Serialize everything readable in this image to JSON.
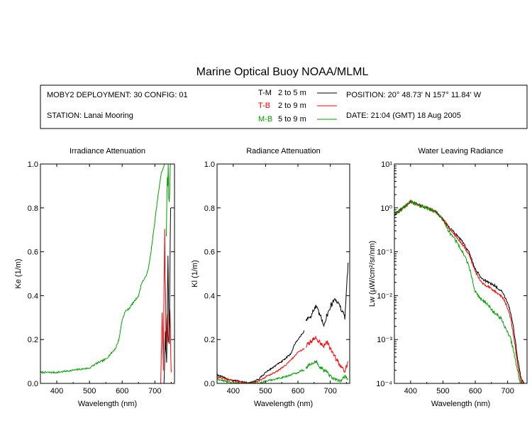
{
  "title": "Marine Optical Buoy NOAA/MLML",
  "info": {
    "deployment": "MOBY2 DEPLOYMENT: 30 CONFIG: 01",
    "station": "STATION: Lanai Mooring",
    "position": "POSITION: 20° 48.73' N   157° 11.84' W",
    "date": "DATE: 21:04 (GMT) 18 Aug 2005"
  },
  "legend": [
    {
      "key": "T-M",
      "range": "2 to 5  m",
      "color": "#000000"
    },
    {
      "key": "T-B",
      "range": "2 to 9  m",
      "color": "#ff0000"
    },
    {
      "key": "M-B",
      "range": "5 to 9  m",
      "color": "#00a000"
    }
  ],
  "chart_data": [
    {
      "type": "line",
      "title": "Irradiance Attenuation",
      "xlabel": "Wavelength (nm)",
      "ylabel": "Ke  (1/m)",
      "xlim": [
        350,
        760
      ],
      "ylim": [
        0,
        1.0
      ],
      "xticks": [
        "400",
        "500",
        "600",
        "700"
      ],
      "yticks": [
        "0.0",
        "0.2",
        "0.4",
        "0.6",
        "0.8",
        "1.0"
      ],
      "series": [
        {
          "color": "#00a000",
          "noise": 0.004,
          "x": [
            350,
            400,
            450,
            500,
            520,
            550,
            580,
            590,
            600,
            610,
            620,
            630,
            650,
            660,
            670,
            680,
            690,
            700,
            710,
            720,
            730
          ],
          "y": [
            0.05,
            0.05,
            0.06,
            0.07,
            0.09,
            0.11,
            0.16,
            0.2,
            0.29,
            0.33,
            0.34,
            0.36,
            0.4,
            0.46,
            0.48,
            0.52,
            0.62,
            0.74,
            0.86,
            0.96,
            1.0
          ]
        },
        {
          "color": "#00a000",
          "noise": 0.06,
          "x": [
            735,
            738,
            741,
            744,
            747,
            750
          ],
          "y": [
            0.7,
            0.9,
            1.0,
            0.8,
            0.95,
            1.0
          ]
        },
        {
          "color": "#ff0000",
          "noise": 0.05,
          "x": [
            718,
            722,
            726,
            730,
            734,
            738,
            742,
            746,
            750
          ],
          "y": [
            0.0,
            0.35,
            0.1,
            0.7,
            0.2,
            0.3,
            0.15,
            0.35,
            0.05
          ]
        },
        {
          "color": "#000000",
          "noise": 0.05,
          "x": [
            728,
            732,
            736,
            740,
            744,
            748
          ],
          "y": [
            0.0,
            0.25,
            0.1,
            0.6,
            0.2,
            0.8
          ]
        }
      ]
    },
    {
      "type": "line",
      "title": "Radiance Attenuation",
      "xlabel": "Wavelength (nm)",
      "ylabel": "Kl  (1/m)",
      "xlim": [
        350,
        760
      ],
      "ylim": [
        0,
        1.0
      ],
      "xticks": [
        "400",
        "500",
        "600",
        "700"
      ],
      "yticks": [
        "0.0",
        "0.2",
        "0.4",
        "0.6",
        "0.8",
        "1.0"
      ],
      "series": [
        {
          "color": "#000000",
          "noise": 0.004,
          "x": [
            350,
            380,
            420,
            450,
            480,
            500,
            530,
            560,
            580,
            590,
            600,
            610,
            620
          ],
          "y": [
            0.04,
            0.02,
            0.01,
            0.0,
            0.02,
            0.05,
            0.08,
            0.11,
            0.14,
            0.18,
            0.2,
            0.22,
            0.24
          ]
        },
        {
          "color": "#000000",
          "noise": 0.012,
          "x": [
            625,
            640,
            655,
            665,
            680,
            690,
            700,
            715,
            730,
            745,
            755
          ],
          "y": [
            0.29,
            0.31,
            0.35,
            0.32,
            0.27,
            0.31,
            0.35,
            0.39,
            0.35,
            0.3,
            0.55
          ]
        },
        {
          "color": "#ff0000",
          "noise": 0.004,
          "x": [
            350,
            400,
            450,
            480,
            500,
            530,
            560,
            580,
            600,
            610,
            620
          ],
          "y": [
            0.03,
            0.01,
            0.0,
            0.01,
            0.03,
            0.05,
            0.08,
            0.11,
            0.14,
            0.15,
            0.16
          ]
        },
        {
          "color": "#ff0000",
          "noise": 0.01,
          "x": [
            625,
            640,
            655,
            665,
            680,
            690,
            700,
            715,
            730,
            745,
            755
          ],
          "y": [
            0.17,
            0.19,
            0.21,
            0.19,
            0.17,
            0.19,
            0.16,
            0.12,
            0.08,
            0.06,
            0.1
          ]
        },
        {
          "color": "#00a000",
          "noise": 0.004,
          "x": [
            350,
            400,
            450,
            480,
            500,
            530,
            560,
            580,
            600,
            610,
            620
          ],
          "y": [
            0.02,
            0.0,
            0.0,
            0.0,
            0.01,
            0.02,
            0.03,
            0.04,
            0.05,
            0.06,
            0.06
          ]
        },
        {
          "color": "#00a000",
          "noise": 0.008,
          "x": [
            625,
            640,
            655,
            665,
            680,
            690,
            700,
            715,
            730,
            745,
            755
          ],
          "y": [
            0.07,
            0.09,
            0.1,
            0.08,
            0.06,
            0.05,
            0.03,
            0.02,
            0.01,
            0.03,
            0.02
          ]
        }
      ]
    },
    {
      "type": "line",
      "title": "Water Leaving Radiance",
      "xlabel": "Wavelength (nm)",
      "ylabel": "Lw (µW/cm²/sr/nm)",
      "xlim": [
        350,
        760
      ],
      "ylim": [
        0.0001,
        10
      ],
      "yscale": "log",
      "xticks": [
        "400",
        "500",
        "600",
        "700"
      ],
      "yticks": [
        "10⁻⁴",
        "10⁻³",
        "10⁻²",
        "10⁻¹",
        "10⁰",
        "10¹"
      ],
      "series": [
        {
          "color": "#000000",
          "noise": 0.03,
          "x": [
            350,
            370,
            390,
            400,
            420,
            450,
            480,
            500,
            520,
            540,
            560,
            580,
            600,
            620,
            640,
            660,
            680,
            690,
            700,
            710,
            720,
            730,
            740,
            750
          ],
          "y": [
            0.7,
            0.9,
            1.2,
            1.4,
            1.2,
            1.0,
            0.8,
            0.55,
            0.35,
            0.25,
            0.17,
            0.1,
            0.04,
            0.025,
            0.02,
            0.017,
            0.013,
            0.01,
            0.007,
            0.004,
            0.0015,
            0.0004,
            0.00015,
            0.0001
          ]
        },
        {
          "color": "#ff0000",
          "noise": 0.03,
          "x": [
            350,
            370,
            390,
            400,
            420,
            450,
            480,
            500,
            520,
            540,
            560,
            580,
            600,
            620,
            640,
            660,
            680,
            690,
            700,
            710,
            720,
            730,
            740,
            750
          ],
          "y": [
            0.7,
            0.9,
            1.2,
            1.4,
            1.2,
            1.0,
            0.8,
            0.55,
            0.33,
            0.23,
            0.15,
            0.09,
            0.035,
            0.02,
            0.016,
            0.013,
            0.01,
            0.008,
            0.005,
            0.003,
            0.001,
            0.0003,
            0.00012,
            0.0001
          ]
        },
        {
          "color": "#00a000",
          "noise": 0.04,
          "x": [
            350,
            370,
            390,
            400,
            420,
            450,
            480,
            500,
            520,
            540,
            560,
            580,
            600,
            620,
            640,
            660,
            680,
            690,
            700,
            710,
            720,
            730,
            740,
            750
          ],
          "y": [
            0.7,
            0.9,
            1.2,
            1.4,
            1.2,
            1.0,
            0.8,
            0.52,
            0.28,
            0.18,
            0.1,
            0.05,
            0.012,
            0.008,
            0.006,
            0.004,
            0.003,
            0.002,
            0.0015,
            0.001,
            0.0005,
            0.0002,
            0.0001,
            0.0001
          ]
        }
      ]
    }
  ]
}
